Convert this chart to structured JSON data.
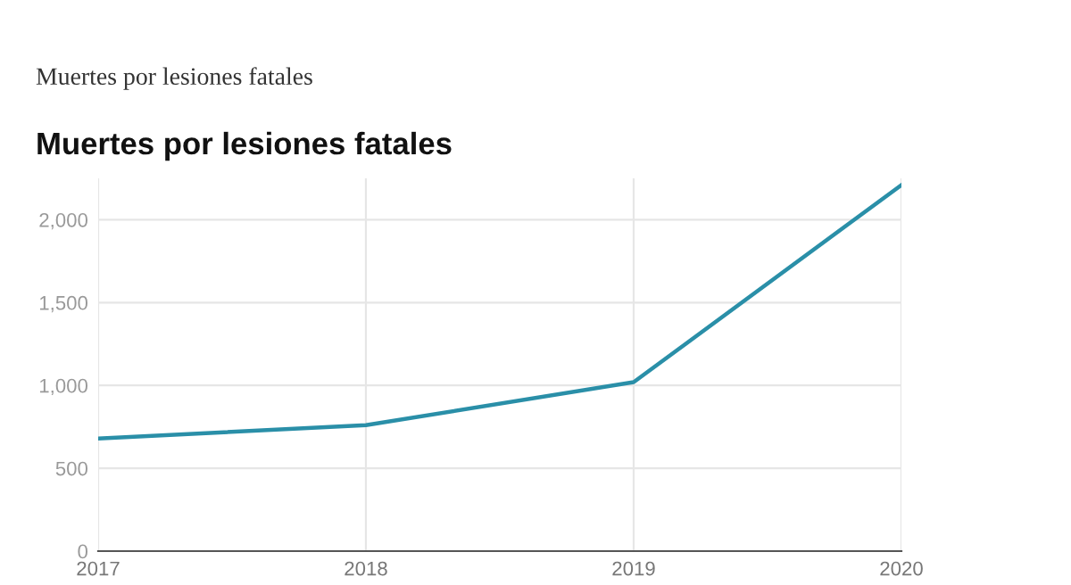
{
  "chart_data": {
    "type": "line",
    "title": "Muertes por lesiones fatales",
    "annotations": [
      "Muertes por lesiones fatales"
    ],
    "x": [
      2017,
      2018,
      2019,
      2020
    ],
    "series": [
      {
        "color": "#2a8fa8",
        "values": [
          680,
          760,
          1020,
          2210
        ]
      }
    ],
    "xlim": [
      2017,
      2020
    ],
    "xticks": [
      2017,
      2018,
      2019,
      2020
    ],
    "ylim": [
      0,
      2250
    ],
    "yticks": [
      {
        "value": 0,
        "label": "0"
      },
      {
        "value": 500,
        "label": "500"
      },
      {
        "value": 1000,
        "label": "1,000"
      },
      {
        "value": 1500,
        "label": "1,500"
      },
      {
        "value": 2000,
        "label": "2,000"
      }
    ],
    "grid": true,
    "legend": false,
    "marker": "none",
    "line_style": "solid"
  }
}
